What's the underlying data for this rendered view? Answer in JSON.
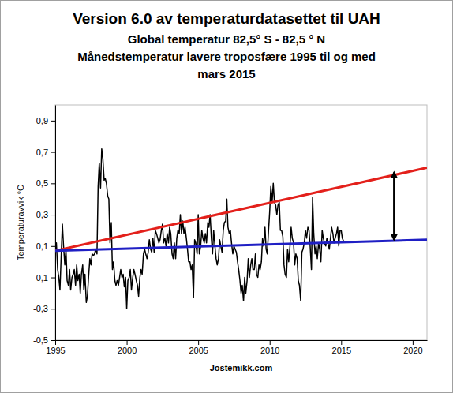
{
  "chart_data": {
    "type": "line",
    "title": "Version 6.0 av temperaturdatasettet til UAH",
    "subtitle": [
      "Global temperatur 82,5° S - 82,5 ° N",
      "Månedstemperatur lavere troposfære 1995 til og med",
      "mars 2015"
    ],
    "ylabel": "Temperaturavvik °C",
    "source": "Jostemikk.com",
    "xlim": [
      1995,
      2021
    ],
    "xticks": [
      1995,
      2000,
      2005,
      2010,
      2015,
      2020
    ],
    "ylim": [
      -0.5,
      1.0
    ],
    "yticks": [
      {
        "value": -0.5,
        "label": "-0,5"
      },
      {
        "value": -0.3,
        "label": "-0,3"
      },
      {
        "value": -0.1,
        "label": "-0,1"
      },
      {
        "value": 0.1,
        "label": "0,1"
      },
      {
        "value": 0.3,
        "label": "0,3"
      },
      {
        "value": 0.5,
        "label": "0,5"
      },
      {
        "value": 0.7,
        "label": "0,7"
      },
      {
        "value": 0.9,
        "label": "0,9"
      }
    ],
    "grid": false,
    "series": [
      {
        "color": "#000000",
        "x": [
          1995,
          1995.08,
          1995.17,
          1995.25,
          1995.33,
          1995.42,
          1995.5,
          1995.58,
          1995.67,
          1995.75,
          1995.83,
          1995.92,
          1996,
          1996.08,
          1996.17,
          1996.25,
          1996.33,
          1996.42,
          1996.5,
          1996.58,
          1996.67,
          1996.75,
          1996.83,
          1996.92,
          1997,
          1997.08,
          1997.17,
          1997.25,
          1997.33,
          1997.42,
          1997.5,
          1997.58,
          1997.67,
          1997.75,
          1997.83,
          1997.92,
          1998,
          1998.08,
          1998.17,
          1998.25,
          1998.33,
          1998.42,
          1998.5,
          1998.58,
          1998.67,
          1998.75,
          1998.83,
          1998.92,
          1999,
          1999.08,
          1999.17,
          1999.25,
          1999.33,
          1999.42,
          1999.5,
          1999.58,
          1999.67,
          1999.75,
          1999.83,
          1999.92,
          2000,
          2000.08,
          2000.17,
          2000.25,
          2000.33,
          2000.42,
          2000.5,
          2000.58,
          2000.67,
          2000.75,
          2000.83,
          2000.92,
          2001,
          2001.08,
          2001.17,
          2001.25,
          2001.33,
          2001.42,
          2001.5,
          2001.58,
          2001.67,
          2001.75,
          2001.83,
          2001.92,
          2002,
          2002.08,
          2002.17,
          2002.25,
          2002.33,
          2002.42,
          2002.5,
          2002.58,
          2002.67,
          2002.75,
          2002.83,
          2002.92,
          2003,
          2003.08,
          2003.17,
          2003.25,
          2003.33,
          2003.42,
          2003.5,
          2003.58,
          2003.67,
          2003.75,
          2003.83,
          2003.92,
          2004,
          2004.08,
          2004.17,
          2004.25,
          2004.33,
          2004.42,
          2004.5,
          2004.58,
          2004.67,
          2004.75,
          2004.83,
          2004.92,
          2005,
          2005.08,
          2005.17,
          2005.25,
          2005.33,
          2005.42,
          2005.5,
          2005.58,
          2005.67,
          2005.75,
          2005.83,
          2005.92,
          2006,
          2006.08,
          2006.17,
          2006.25,
          2006.33,
          2006.42,
          2006.5,
          2006.58,
          2006.67,
          2006.75,
          2006.83,
          2006.92,
          2007,
          2007.08,
          2007.17,
          2007.25,
          2007.33,
          2007.42,
          2007.5,
          2007.58,
          2007.67,
          2007.75,
          2007.83,
          2007.92,
          2008,
          2008.08,
          2008.17,
          2008.25,
          2008.33,
          2008.42,
          2008.5,
          2008.58,
          2008.67,
          2008.75,
          2008.83,
          2008.92,
          2009,
          2009.08,
          2009.17,
          2009.25,
          2009.33,
          2009.42,
          2009.5,
          2009.58,
          2009.67,
          2009.75,
          2009.83,
          2009.92,
          2010,
          2010.08,
          2010.17,
          2010.25,
          2010.33,
          2010.42,
          2010.5,
          2010.58,
          2010.67,
          2010.75,
          2010.83,
          2010.92,
          2011,
          2011.08,
          2011.17,
          2011.25,
          2011.33,
          2011.42,
          2011.5,
          2011.58,
          2011.67,
          2011.75,
          2011.83,
          2011.92,
          2012,
          2012.08,
          2012.17,
          2012.25,
          2012.33,
          2012.42,
          2012.5,
          2012.58,
          2012.67,
          2012.75,
          2012.83,
          2012.92,
          2013,
          2013.08,
          2013.17,
          2013.25,
          2013.33,
          2013.42,
          2013.5,
          2013.58,
          2013.67,
          2013.75,
          2013.83,
          2013.92,
          2014,
          2014.08,
          2014.17,
          2014.25,
          2014.33,
          2014.42,
          2014.5,
          2014.58,
          2014.67,
          2014.75,
          2014.83,
          2014.92,
          2015,
          2015.08,
          2015.17
        ],
        "values": [
          0.05,
          0.12,
          -0.05,
          -0.1,
          -0.18,
          0.05,
          0.24,
          0.1,
          -0.02,
          0.08,
          -0.12,
          -0.15,
          -0.05,
          -0.18,
          -0.1,
          -0.08,
          -0.05,
          -0.15,
          -0.02,
          -0.12,
          -0.08,
          -0.2,
          -0.08,
          -0.02,
          -0.18,
          -0.08,
          -0.26,
          -0.22,
          -0.1,
          0.02,
          -0.02,
          0.05,
          0.04,
          0.05,
          0.08,
          0.05,
          0.48,
          0.63,
          0.47,
          0.72,
          0.66,
          0.52,
          0.53,
          0.5,
          0.42,
          0.4,
          0.12,
          0.25,
          -0.05,
          0.0,
          -0.12,
          -0.15,
          -0.12,
          -0.15,
          -0.1,
          -0.05,
          -0.1,
          -0.08,
          -0.16,
          -0.1,
          -0.3,
          -0.12,
          -0.1,
          -0.05,
          -0.18,
          -0.1,
          -0.05,
          -0.08,
          -0.12,
          -0.15,
          -0.22,
          -0.1,
          -0.05,
          -0.08,
          0.05,
          0.08,
          0.05,
          0.02,
          0.06,
          0.14,
          0.08,
          0.06,
          0.15,
          0.06,
          0.2,
          0.18,
          0.15,
          0.12,
          0.14,
          0.2,
          0.24,
          0.12,
          0.15,
          0.1,
          0.18,
          0.12,
          0.22,
          0.18,
          0.05,
          0.02,
          0.12,
          0.02,
          0.15,
          0.2,
          0.18,
          0.3,
          0.18,
          0.26,
          0.18,
          0.22,
          0.15,
          0.08,
          0.0,
          0.0,
          -0.05,
          -0.02,
          -0.23,
          0.14,
          0.12,
          0.05,
          0.3,
          0.05,
          0.1,
          0.2,
          0.15,
          0.12,
          0.18,
          0.12,
          0.25,
          0.22,
          0.3,
          0.15,
          0.05,
          0.2,
          0.1,
          0.02,
          -0.02,
          0.02,
          0.14,
          0.1,
          0.06,
          0.2,
          0.25,
          0.26,
          0.4,
          0.22,
          0.18,
          0.2,
          0.12,
          0.05,
          0.1,
          0.08,
          0.06,
          0.0,
          -0.05,
          -0.12,
          -0.2,
          -0.15,
          -0.25,
          -0.1,
          -0.2,
          -0.12,
          0.02,
          -0.1,
          -0.02,
          0.02,
          -0.05,
          -0.05,
          0.05,
          -0.08,
          -0.1,
          -0.02,
          -0.05,
          0.0,
          0.15,
          0.1,
          0.22,
          0.08,
          0.05,
          0.2,
          0.32,
          0.48,
          0.38,
          0.5,
          0.38,
          0.36,
          0.3,
          0.36,
          0.38,
          0.2,
          0.2,
          0.16,
          -0.02,
          -0.08,
          -0.1,
          0.08,
          0.0,
          0.1,
          0.22,
          0.15,
          0.12,
          -0.02,
          0.05,
          0.02,
          -0.12,
          -0.15,
          -0.25,
          0.06,
          0.08,
          0.12,
          0.2,
          0.15,
          0.22,
          0.2,
          0.1,
          -0.05,
          0.41,
          0.18,
          0.05,
          0.1,
          0.02,
          0.12,
          0.08,
          0.0,
          0.2,
          0.15,
          0.12,
          0.1,
          0.15,
          0.12,
          0.08,
          0.15,
          0.22,
          0.18,
          0.12,
          0.15,
          0.18,
          0.22,
          0.1,
          0.2,
          0.2,
          0.15,
          0.13
        ]
      },
      {
        "color": "#e3201b",
        "x": [
          1995,
          2021
        ],
        "values": [
          0.07,
          0.6
        ]
      },
      {
        "color": "#1f1fc4",
        "x": [
          1995,
          2021
        ],
        "values": [
          0.07,
          0.14
        ]
      }
    ],
    "arrows": [
      {
        "x": 2018.7,
        "y1": 0.14,
        "y2": 0.57
      }
    ]
  }
}
